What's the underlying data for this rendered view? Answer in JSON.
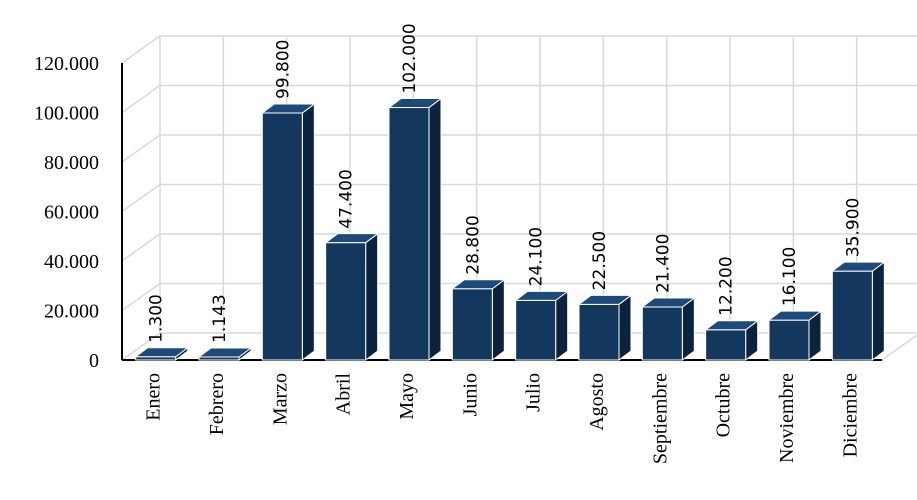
{
  "chart_data": {
    "type": "bar",
    "categories": [
      "Enero",
      "Febrero",
      "Marzo",
      "Abril",
      "Mayo",
      "Junio",
      "Julio",
      "Agosto",
      "Septiembre",
      "Octubre",
      "Noviembre",
      "Diciembre"
    ],
    "values": [
      1300,
      1143,
      99800,
      47400,
      102000,
      28800,
      24100,
      22500,
      21400,
      12200,
      16100,
      35900
    ],
    "data_labels": [
      "1.300",
      "1.143",
      "99.800",
      "47.400",
      "102.000",
      "28.800",
      "24.100",
      "22.500",
      "21.400",
      "12.200",
      "16.100",
      "35.900"
    ],
    "y_ticks": [
      0,
      20000,
      40000,
      60000,
      80000,
      100000,
      120000
    ],
    "y_tick_labels": [
      "0",
      "20.000",
      "40.000",
      "60.000",
      "80.000",
      "100.000",
      "120.000"
    ],
    "ylim": [
      0,
      120000
    ],
    "grid": true,
    "three_d": true,
    "colors": {
      "bar_front": "#14375e",
      "bar_side": "#0c2340",
      "bar_top": "#1d4a78",
      "bar_edge": "#ffffff",
      "grid": "#d9d9d9",
      "axis": "#000000"
    }
  }
}
